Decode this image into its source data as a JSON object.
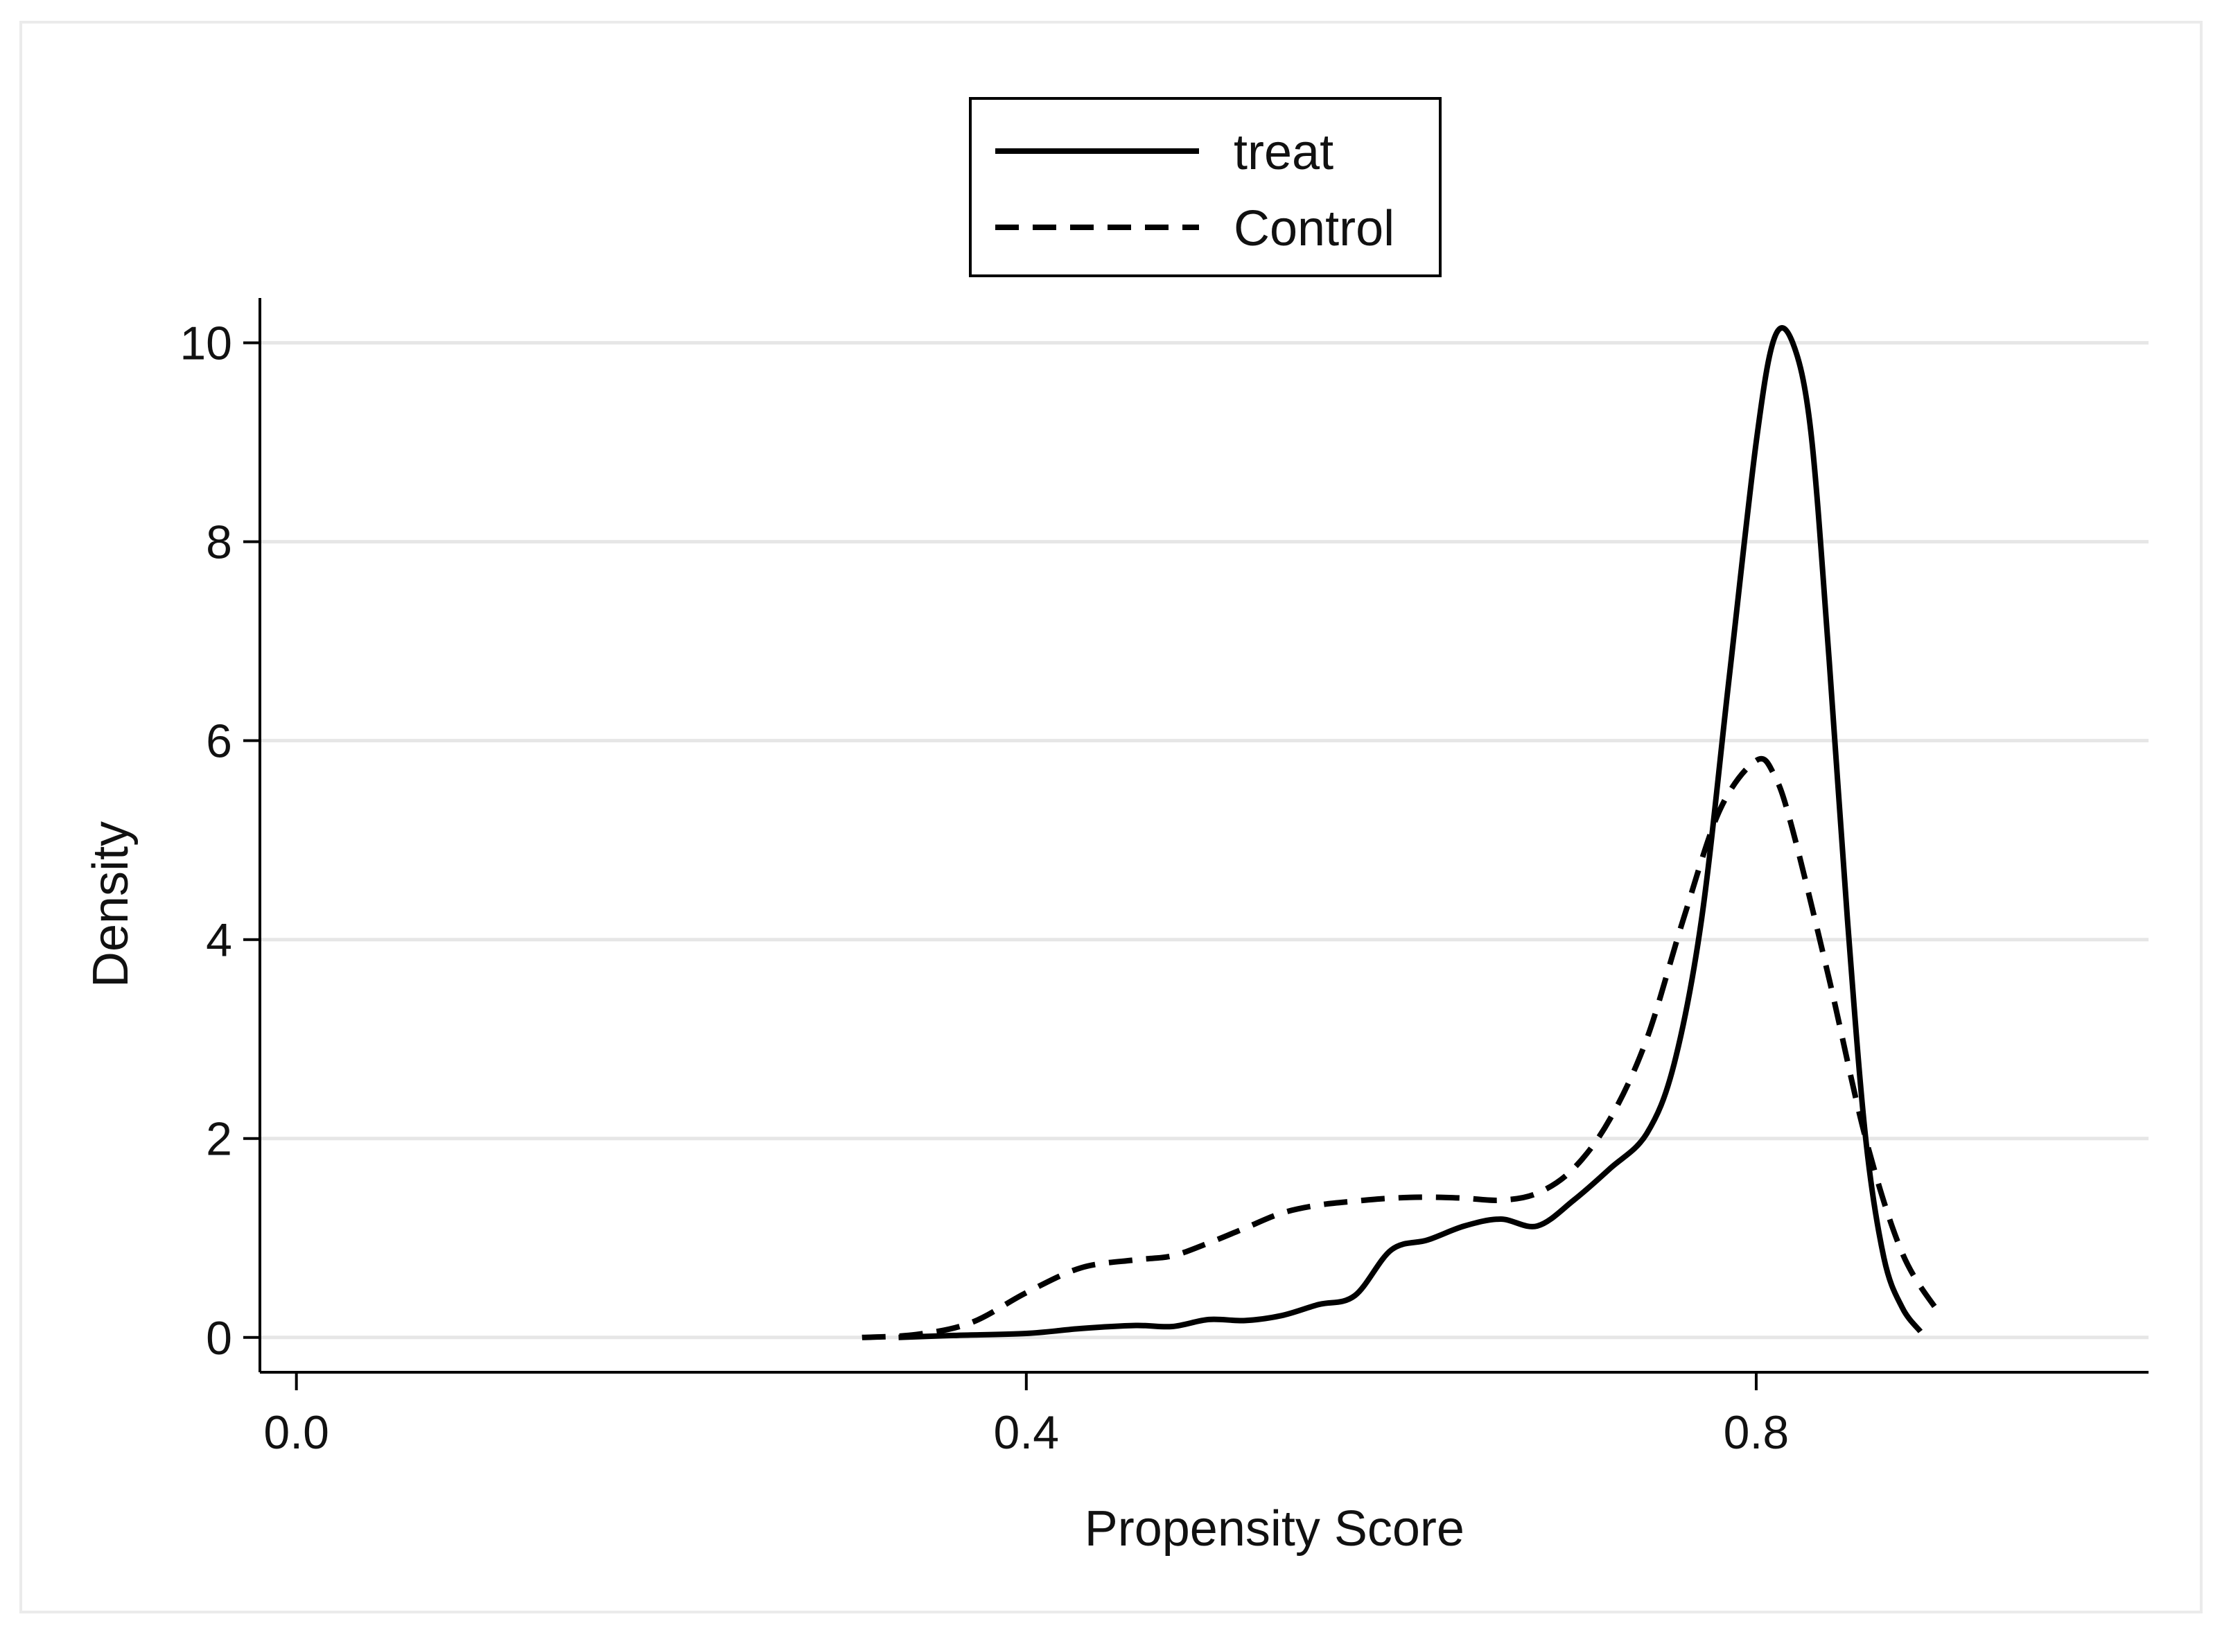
{
  "chart_data": {
    "type": "line",
    "title": "",
    "xlabel": "Propensity Score",
    "ylabel": "Density",
    "xlim": [
      -0.02,
      1.015
    ],
    "ylim": [
      -0.35,
      10.45
    ],
    "x_ticks": [
      0.0,
      0.4,
      0.8
    ],
    "x_tick_labels": [
      "0.0",
      "0.4",
      "0.8"
    ],
    "y_ticks": [
      0,
      2,
      4,
      6,
      8,
      10
    ],
    "y_tick_labels": [
      "0",
      "2",
      "4",
      "6",
      "8",
      "10"
    ],
    "grid": "horizontal",
    "legend_position": "top-center",
    "series": [
      {
        "name": "treat",
        "style": "solid",
        "color": "#000000",
        "points": [
          [
            0.33,
            0.0
          ],
          [
            0.36,
            0.02
          ],
          [
            0.4,
            0.04
          ],
          [
            0.43,
            0.09
          ],
          [
            0.46,
            0.12
          ],
          [
            0.48,
            0.11
          ],
          [
            0.5,
            0.18
          ],
          [
            0.52,
            0.17
          ],
          [
            0.54,
            0.22
          ],
          [
            0.56,
            0.33
          ],
          [
            0.58,
            0.42
          ],
          [
            0.6,
            0.88
          ],
          [
            0.62,
            0.98
          ],
          [
            0.64,
            1.12
          ],
          [
            0.66,
            1.19
          ],
          [
            0.68,
            1.12
          ],
          [
            0.7,
            1.38
          ],
          [
            0.72,
            1.7
          ],
          [
            0.74,
            2.05
          ],
          [
            0.755,
            2.75
          ],
          [
            0.77,
            4.2
          ],
          [
            0.785,
            6.6
          ],
          [
            0.8,
            9.0
          ],
          [
            0.81,
            10.05
          ],
          [
            0.82,
            10.0
          ],
          [
            0.83,
            9.1
          ],
          [
            0.84,
            6.8
          ],
          [
            0.85,
            4.2
          ],
          [
            0.86,
            2.0
          ],
          [
            0.87,
            0.8
          ],
          [
            0.88,
            0.3
          ],
          [
            0.89,
            0.06
          ]
        ]
      },
      {
        "name": "Control",
        "style": "dashed",
        "color": "#000000",
        "points": [
          [
            0.31,
            0.0
          ],
          [
            0.34,
            0.03
          ],
          [
            0.37,
            0.15
          ],
          [
            0.4,
            0.45
          ],
          [
            0.43,
            0.7
          ],
          [
            0.46,
            0.78
          ],
          [
            0.48,
            0.82
          ],
          [
            0.5,
            0.95
          ],
          [
            0.52,
            1.1
          ],
          [
            0.54,
            1.25
          ],
          [
            0.56,
            1.33
          ],
          [
            0.58,
            1.37
          ],
          [
            0.6,
            1.4
          ],
          [
            0.62,
            1.41
          ],
          [
            0.64,
            1.4
          ],
          [
            0.66,
            1.38
          ],
          [
            0.68,
            1.45
          ],
          [
            0.7,
            1.7
          ],
          [
            0.72,
            2.2
          ],
          [
            0.74,
            3.0
          ],
          [
            0.76,
            4.2
          ],
          [
            0.78,
            5.3
          ],
          [
            0.8,
            5.8
          ],
          [
            0.81,
            5.65
          ],
          [
            0.82,
            5.1
          ],
          [
            0.84,
            3.6
          ],
          [
            0.86,
            2.0
          ],
          [
            0.88,
            0.85
          ],
          [
            0.9,
            0.25
          ]
        ]
      }
    ]
  }
}
